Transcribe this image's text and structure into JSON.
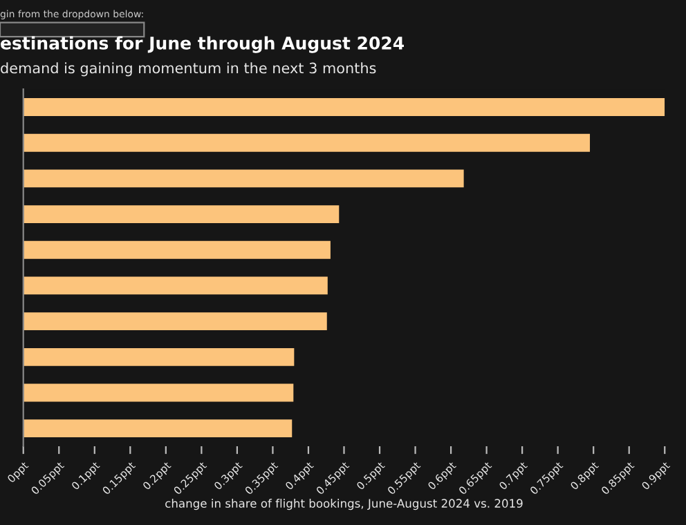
{
  "chart_data": {
    "type": "bar",
    "orientation": "horizontal",
    "title": "estinations for June through August 2024",
    "subtitle": "demand is gaining momentum in the next 3 months",
    "annotations": [
      "gin from the dropdown below:"
    ],
    "xlabel": "change in share of flight bookings, June-August 2024 vs. 2019",
    "categories": [
      null,
      null,
      null,
      null,
      null,
      null,
      null,
      null,
      null,
      null
    ],
    "values": [
      0.9,
      0.795,
      0.618,
      0.443,
      0.431,
      0.427,
      0.426,
      0.38,
      0.379,
      0.377
    ],
    "color": "#fcc47c",
    "xlim": [
      0,
      0.9
    ],
    "xticks": [
      {
        "value": 0,
        "label": "0ppt"
      },
      {
        "value": 0.05,
        "label": "0.05ppt"
      },
      {
        "value": 0.1,
        "label": "0.1ppt"
      },
      {
        "value": 0.15,
        "label": "0.15ppt"
      },
      {
        "value": 0.2,
        "label": "0.2ppt"
      },
      {
        "value": 0.25,
        "label": "0.25ppt"
      },
      {
        "value": 0.3,
        "label": "0.3ppt"
      },
      {
        "value": 0.35,
        "label": "0.35ppt"
      },
      {
        "value": 0.4,
        "label": "0.4ppt"
      },
      {
        "value": 0.45,
        "label": "0.45ppt"
      },
      {
        "value": 0.5,
        "label": "0.5ppt"
      },
      {
        "value": 0.55,
        "label": "0.55ppt"
      },
      {
        "value": 0.6,
        "label": "0.6ppt"
      },
      {
        "value": 0.65,
        "label": "0.65ppt"
      },
      {
        "value": 0.7,
        "label": "0.7ppt"
      },
      {
        "value": 0.75,
        "label": "0.75ppt"
      },
      {
        "value": 0.8,
        "label": "0.8ppt"
      },
      {
        "value": 0.85,
        "label": "0.85ppt"
      },
      {
        "value": 0.9,
        "label": "0.9ppt"
      }
    ],
    "grid": false,
    "legend": false
  }
}
